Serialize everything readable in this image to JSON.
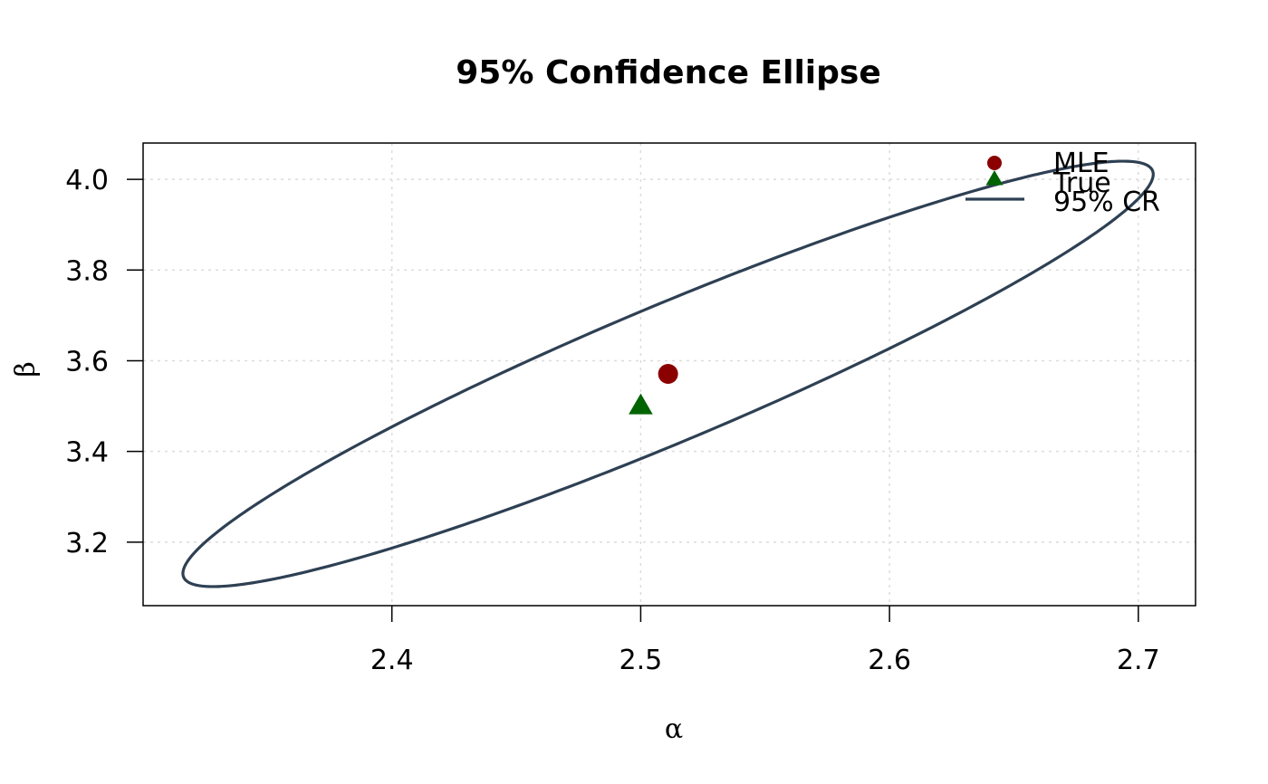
{
  "chart_data": {
    "type": "scatter",
    "title": "95% Confidence Ellipse",
    "xlabel": "α",
    "ylabel": "β",
    "xlim": [
      2.3,
      2.723
    ],
    "ylim": [
      3.06,
      4.08
    ],
    "x_ticks": [
      2.4,
      2.5,
      2.6,
      2.7
    ],
    "y_ticks": [
      3.2,
      3.4,
      3.6,
      3.8,
      4.0
    ],
    "x_tick_labels": [
      "2.4",
      "2.5",
      "2.6",
      "2.7"
    ],
    "y_tick_labels": [
      "3.2",
      "3.4",
      "3.6",
      "3.8",
      "4.0"
    ],
    "grid": true,
    "legend_position": "top-right",
    "points": [
      {
        "name": "MLE",
        "x": 2.511,
        "y": 3.571,
        "shape": "circle",
        "color": "#8B0000"
      },
      {
        "name": "True",
        "x": 2.5,
        "y": 3.5,
        "shape": "triangle",
        "color": "#006400"
      }
    ],
    "ellipse": {
      "name": "95% CR",
      "color": "#2E4053",
      "center": [
        2.511,
        3.571
      ],
      "alpha_range": [
        2.316,
        2.706
      ],
      "beta_range": [
        3.102,
        4.04
      ],
      "rho": 0.938
    },
    "legend": [
      {
        "label": "MLE",
        "symbol": "circle",
        "color": "#8B0000"
      },
      {
        "label": "True",
        "symbol": "triangle",
        "color": "#006400"
      },
      {
        "label": "95% CR",
        "symbol": "line",
        "color": "#2E4053"
      }
    ]
  }
}
